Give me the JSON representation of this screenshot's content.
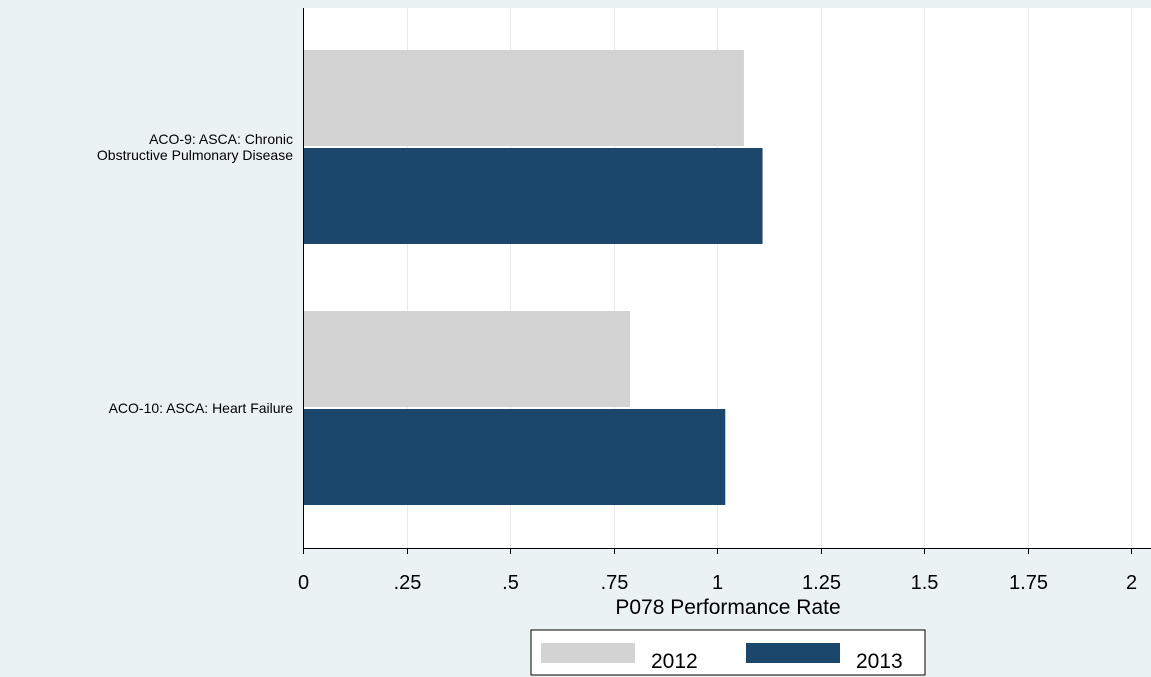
{
  "chart_data": {
    "type": "bar",
    "orientation": "horizontal",
    "categories": [
      [
        "ACO-9: ASCA: Chronic",
        "Obstructive Pulmonary Disease"
      ],
      [
        "ACO-10: ASCA: Heart Failure"
      ]
    ],
    "series": [
      {
        "name": "2012",
        "values": [
          1.065,
          0.79
        ],
        "color": "#d3d3d3"
      },
      {
        "name": "2013",
        "values": [
          1.11,
          1.02
        ],
        "color": "#1b476d"
      }
    ],
    "xlabel": "P078 Performance Rate",
    "xlim": [
      0,
      2
    ],
    "xticks": [
      0,
      0.25,
      0.5,
      0.75,
      1,
      1.25,
      1.5,
      1.75,
      2
    ],
    "xtick_labels": [
      "0",
      ".25",
      ".5",
      ".75",
      "1",
      "1.25",
      "1.5",
      "1.75",
      "2"
    ],
    "grid": true,
    "legend_position": "bottom"
  },
  "colors": {
    "background": "#eaf2f3",
    "plot_background": "#ffffff",
    "grid": "#e6ecec"
  }
}
